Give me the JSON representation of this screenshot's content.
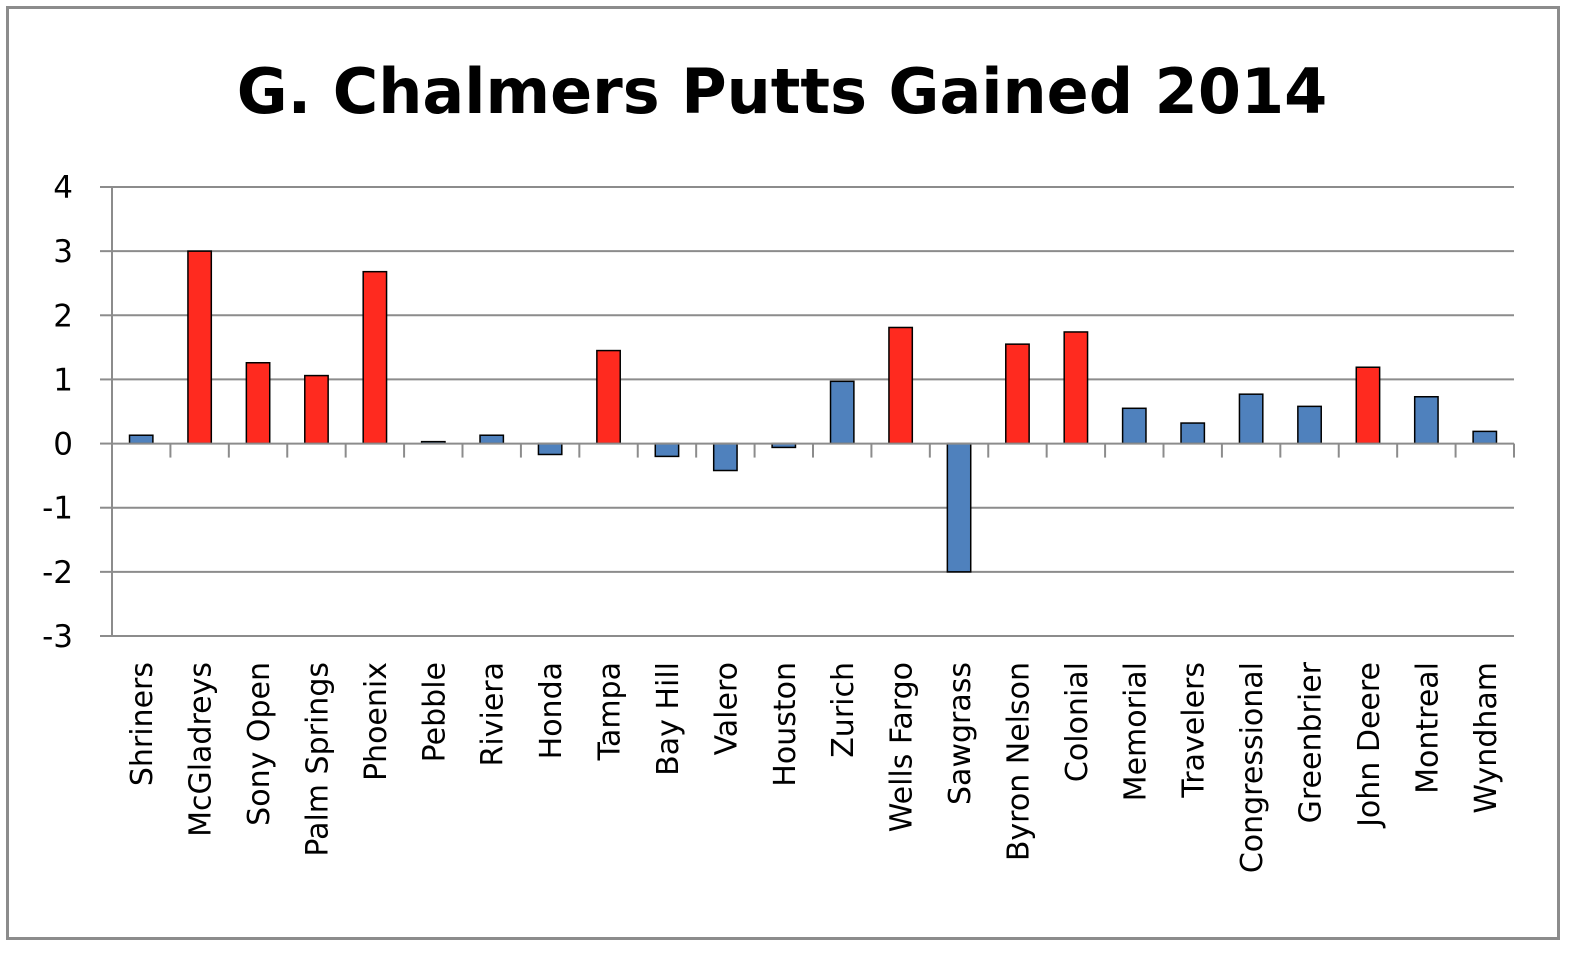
{
  "chart_data": {
    "type": "bar",
    "title": "G. Chalmers Putts Gained 2014",
    "xlabel": "",
    "ylabel": "",
    "ylim": [
      -3,
      4
    ],
    "yticks": [
      "4",
      "3",
      "2",
      "1",
      "0",
      "-1",
      "-2",
      "-3"
    ],
    "grid": true,
    "legend": "none",
    "colors": {
      "highlight": "#ff2a1f",
      "default": "#4f81bd",
      "outline": "#000000",
      "grid": "#8c8c8c"
    },
    "categories": [
      "Shriners",
      "McGladreys",
      "Sony Open",
      "Palm Springs",
      "Phoenix",
      "Pebble",
      "Riviera",
      "Honda",
      "Tampa",
      "Bay Hill",
      "Valero",
      "Houston",
      "Zurich",
      "Wells Fargo",
      "Sawgrass",
      "Byron Nelson",
      "Colonial",
      "Memorial",
      "Travelers",
      "Congressional",
      "Greenbrier",
      "John Deere",
      "Montreal",
      "Wyndham"
    ],
    "values": [
      0.13,
      3.0,
      1.26,
      1.06,
      2.68,
      0.03,
      0.13,
      -0.17,
      1.45,
      -0.2,
      -0.42,
      -0.06,
      0.97,
      1.81,
      -2.0,
      1.55,
      1.74,
      0.55,
      0.32,
      0.77,
      0.58,
      1.19,
      0.73,
      0.19
    ],
    "highlighted": [
      false,
      true,
      true,
      true,
      true,
      false,
      false,
      false,
      true,
      false,
      false,
      false,
      false,
      true,
      false,
      true,
      true,
      false,
      false,
      false,
      false,
      true,
      false,
      false
    ]
  }
}
